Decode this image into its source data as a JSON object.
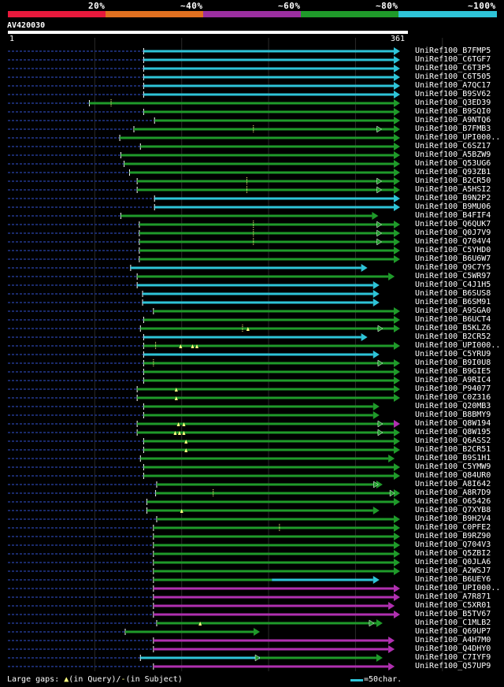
{
  "header": {
    "segments": [
      {
        "label": "20%",
        "color": "#e8193c"
      },
      {
        "label": "~40%",
        "color": "#e07020"
      },
      {
        "label": "~60%",
        "color": "#9b2fa0"
      },
      {
        "label": "~80%",
        "color": "#1f9a2a"
      },
      {
        "label": "~100%",
        "color": "#2ec4d8"
      }
    ],
    "query_name": "AV420030",
    "start_pos": "1",
    "end_pos": "361"
  },
  "colors": {
    "background": "#000000",
    "query_line": "#ffffff",
    "dashed_lead": "#1a2a6a",
    "gridline": "#2a2a2a",
    "cyan": "#2ec4d8",
    "green": "#1f9a2a",
    "magenta": "#b030b0",
    "gap_marker": "#ffff80"
  },
  "alignment": {
    "query_length": 361,
    "hits": [
      {
        "id": "UniRef100_B7FMP5",
        "start": 125,
        "end": 361,
        "color": "cyan"
      },
      {
        "id": "UniRef100_C6TGF7",
        "start": 125,
        "end": 361,
        "color": "cyan"
      },
      {
        "id": "UniRef100_C6T3P5",
        "start": 125,
        "end": 361,
        "color": "cyan"
      },
      {
        "id": "UniRef100_C6T505",
        "start": 125,
        "end": 361,
        "color": "cyan"
      },
      {
        "id": "UniRef100_A7QC17",
        "start": 125,
        "end": 361,
        "color": "cyan"
      },
      {
        "id": "UniRef100_B9SV62",
        "start": 125,
        "end": 361,
        "color": "cyan"
      },
      {
        "id": "UniRef100_Q3ED39",
        "start": 75,
        "end": 361,
        "color": "green",
        "gaps": [
          {
            "pos": 95,
            "type": "subject"
          }
        ]
      },
      {
        "id": "UniRef100_B9SQI0",
        "start": 125,
        "end": 361,
        "color": "green"
      },
      {
        "id": "UniRef100_A9NTQ6",
        "start": 135,
        "end": 361,
        "color": "green"
      },
      {
        "id": "UniRef100_B7FMB3",
        "start": 116,
        "end": 361,
        "color": "green",
        "gaps": [
          {
            "pos": 226,
            "type": "subject"
          }
        ],
        "mid_arrows": [
          344
        ]
      },
      {
        "id": "UniRef100_UPI000..",
        "start": 103,
        "end": 361,
        "color": "green"
      },
      {
        "id": "UniRef100_C6SZ17",
        "start": 122,
        "end": 361,
        "color": "green"
      },
      {
        "id": "UniRef100_A5BZW9",
        "start": 104,
        "end": 361,
        "color": "green"
      },
      {
        "id": "UniRef100_Q53UG6",
        "start": 107,
        "end": 361,
        "color": "green"
      },
      {
        "id": "UniRef100_Q93ZB1",
        "start": 112,
        "end": 361,
        "color": "green"
      },
      {
        "id": "UniRef100_B2CR50",
        "start": 119,
        "end": 361,
        "color": "green",
        "gaps": [
          {
            "pos": 220,
            "type": "subject"
          }
        ],
        "mid_arrows": [
          344
        ]
      },
      {
        "id": "UniRef100_A5HSI2",
        "start": 119,
        "end": 361,
        "color": "green",
        "gaps": [
          {
            "pos": 220,
            "type": "subject"
          }
        ],
        "mid_arrows": [
          344
        ]
      },
      {
        "id": "UniRef100_B9N2P2",
        "start": 135,
        "end": 361,
        "color": "cyan"
      },
      {
        "id": "UniRef100_B9MU06",
        "start": 135,
        "end": 361,
        "color": "cyan"
      },
      {
        "id": "UniRef100_B4FIF4",
        "start": 104,
        "end": 341,
        "color": "green"
      },
      {
        "id": "UniRef100_Q6QUK7",
        "start": 121,
        "end": 361,
        "color": "green",
        "gaps": [
          {
            "pos": 226,
            "type": "subject"
          }
        ],
        "mid_arrows": [
          344
        ]
      },
      {
        "id": "UniRef100_Q0J7V9",
        "start": 121,
        "end": 361,
        "color": "green",
        "gaps": [
          {
            "pos": 226,
            "type": "subject"
          }
        ],
        "mid_arrows": [
          344
        ]
      },
      {
        "id": "UniRef100_Q704V4",
        "start": 121,
        "end": 361,
        "color": "green",
        "gaps": [
          {
            "pos": 226,
            "type": "subject"
          }
        ],
        "mid_arrows": [
          344
        ]
      },
      {
        "id": "UniRef100_C5YHD0",
        "start": 121,
        "end": 361,
        "color": "green"
      },
      {
        "id": "UniRef100_B6U6W7",
        "start": 121,
        "end": 361,
        "color": "green"
      },
      {
        "id": "UniRef100_Q9C7Y5",
        "start": 113,
        "end": 331,
        "color": "cyan",
        "prefix_green": true
      },
      {
        "id": "UniRef100_C5WR97",
        "start": 119,
        "end": 356,
        "color": "green"
      },
      {
        "id": "UniRef100_C4J1H5",
        "start": 119,
        "end": 342,
        "color": "cyan"
      },
      {
        "id": "UniRef100_B6SUS8",
        "start": 124,
        "end": 342,
        "color": "cyan"
      },
      {
        "id": "UniRef100_B6SM91",
        "start": 124,
        "end": 342,
        "color": "cyan"
      },
      {
        "id": "UniRef100_A9SGA0",
        "start": 134,
        "end": 361,
        "color": "green"
      },
      {
        "id": "UniRef100_B6UCT4",
        "start": 125,
        "end": 361,
        "color": "green"
      },
      {
        "id": "UniRef100_B5KLZ6",
        "start": 122,
        "end": 361,
        "color": "green",
        "gaps": [
          {
            "pos": 216,
            "type": "subject"
          },
          {
            "pos": 221,
            "type": "query"
          }
        ],
        "mid_arrows": [
          345
        ]
      },
      {
        "id": "UniRef100_B2CR52",
        "start": 125,
        "end": 331,
        "color": "cyan"
      },
      {
        "id": "UniRef100_UPI000..",
        "start": 125,
        "end": 361,
        "color": "green",
        "gaps": [
          {
            "pos": 136,
            "type": "subject"
          },
          {
            "pos": 159,
            "type": "query"
          },
          {
            "pos": 170,
            "type": "query"
          },
          {
            "pos": 174,
            "type": "query"
          }
        ]
      },
      {
        "id": "UniRef100_C5YRU9",
        "start": 125,
        "end": 342,
        "color": "cyan"
      },
      {
        "id": "UniRef100_B9I0U8",
        "start": 125,
        "end": 361,
        "color": "green",
        "gaps": [
          {
            "pos": 134,
            "type": "subject"
          }
        ],
        "mid_arrows": [
          345
        ]
      },
      {
        "id": "UniRef100_B9GIE5",
        "start": 125,
        "end": 361,
        "color": "green"
      },
      {
        "id": "UniRef100_A9RIC4",
        "start": 125,
        "end": 361,
        "color": "green"
      },
      {
        "id": "UniRef100_P94077",
        "start": 119,
        "end": 361,
        "color": "green",
        "gaps": [
          {
            "pos": 155,
            "type": "query"
          }
        ]
      },
      {
        "id": "UniRef100_C0Z316",
        "start": 119,
        "end": 361,
        "color": "green",
        "gaps": [
          {
            "pos": 155,
            "type": "query"
          }
        ]
      },
      {
        "id": "UniRef100_Q20MB3",
        "start": 125,
        "end": 342,
        "color": "green"
      },
      {
        "id": "UniRef100_B8BMY9",
        "start": 125,
        "end": 342,
        "color": "green"
      },
      {
        "id": "UniRef100_Q8W194",
        "start": 119,
        "end": 361,
        "color": "green",
        "end_color": "magenta",
        "gaps": [
          {
            "pos": 157,
            "type": "query"
          },
          {
            "pos": 162,
            "type": "query"
          }
        ],
        "mid_arrows": [
          345
        ]
      },
      {
        "id": "UniRef100_Q8W195",
        "start": 119,
        "end": 361,
        "color": "green",
        "gaps": [
          {
            "pos": 154,
            "type": "query"
          },
          {
            "pos": 158,
            "type": "query"
          },
          {
            "pos": 162,
            "type": "query"
          }
        ],
        "mid_arrows": [
          345
        ]
      },
      {
        "id": "UniRef100_Q6ASS2",
        "start": 125,
        "end": 361,
        "color": "green",
        "gaps": [
          {
            "pos": 164,
            "type": "query"
          }
        ]
      },
      {
        "id": "UniRef100_B2CR51",
        "start": 125,
        "end": 361,
        "color": "green",
        "gaps": [
          {
            "pos": 164,
            "type": "query"
          }
        ]
      },
      {
        "id": "UniRef100_B9S1H1",
        "start": 122,
        "end": 356,
        "color": "green"
      },
      {
        "id": "UniRef100_C5YMW9",
        "start": 125,
        "end": 361,
        "color": "green"
      },
      {
        "id": "UniRef100_Q84UR0",
        "start": 125,
        "end": 361,
        "color": "green"
      },
      {
        "id": "UniRef100_A8I642",
        "start": 137,
        "end": 345,
        "color": "green",
        "mid_arrows": [
          341
        ]
      },
      {
        "id": "UniRef100_A8R7D9",
        "start": 136,
        "end": 361,
        "color": "green",
        "gaps": [
          {
            "pos": 189,
            "type": "subject"
          }
        ],
        "mid_arrows": [
          356
        ]
      },
      {
        "id": "UniRef100_O65426",
        "start": 128,
        "end": 361,
        "color": "green"
      },
      {
        "id": "UniRef100_Q7XYB8",
        "start": 128,
        "end": 342,
        "color": "green",
        "gaps": [
          {
            "pos": 160,
            "type": "query"
          }
        ]
      },
      {
        "id": "UniRef100_B9H2V4",
        "start": 137,
        "end": 361,
        "color": "green"
      },
      {
        "id": "UniRef100_C0PFE2",
        "start": 134,
        "end": 361,
        "color": "green",
        "gaps": [
          {
            "pos": 250,
            "type": "subject"
          }
        ]
      },
      {
        "id": "UniRef100_B9RZ90",
        "start": 134,
        "end": 361,
        "color": "green"
      },
      {
        "id": "UniRef100_Q704V3",
        "start": 134,
        "end": 361,
        "color": "green"
      },
      {
        "id": "UniRef100_Q5ZBI2",
        "start": 134,
        "end": 361,
        "color": "green"
      },
      {
        "id": "UniRef100_Q0JLA6",
        "start": 134,
        "end": 361,
        "color": "green"
      },
      {
        "id": "UniRef100_A2WSJ7",
        "start": 134,
        "end": 361,
        "color": "green"
      },
      {
        "id": "UniRef100_B6UEY6",
        "start": 134,
        "end": 342,
        "color": "green",
        "end_color": "cyan",
        "cyan_from": 243
      },
      {
        "id": "UniRef100_UPI000..",
        "start": 134,
        "end": 361,
        "color": "magenta"
      },
      {
        "id": "UniRef100_A7R871",
        "start": 134,
        "end": 361,
        "color": "magenta"
      },
      {
        "id": "UniRef100_C5XR01",
        "start": 134,
        "end": 356,
        "color": "magenta"
      },
      {
        "id": "UniRef100_B5TV67",
        "start": 134,
        "end": 361,
        "color": "magenta"
      },
      {
        "id": "UniRef100_C1MLB2",
        "start": 137,
        "end": 345,
        "color": "green",
        "prefix_magenta": true,
        "gaps": [
          {
            "pos": 177,
            "type": "query"
          }
        ],
        "mid_arrows": [
          337
        ]
      },
      {
        "id": "UniRef100_Q69UP7",
        "start": 108,
        "end": 232,
        "color": "green"
      },
      {
        "id": "UniRef100_A4H7M0",
        "start": 134,
        "end": 356,
        "color": "magenta"
      },
      {
        "id": "UniRef100_Q4DHY0",
        "start": 134,
        "end": 356,
        "color": "magenta"
      },
      {
        "id": "UniRef100_C7IYF9",
        "start": 122,
        "end": 345,
        "color": "green",
        "cyan_to": 232,
        "mid_arrows": [
          232
        ]
      },
      {
        "id": "UniRef100_Q57UP9",
        "start": 134,
        "end": 356,
        "color": "magenta"
      }
    ]
  },
  "footer": {
    "gaps_prefix": "Large gaps:",
    "gaps_query": "(in Query)/",
    "gaps_dash": "-",
    "gaps_subject": "(in Subject)",
    "legend": "=50char."
  }
}
